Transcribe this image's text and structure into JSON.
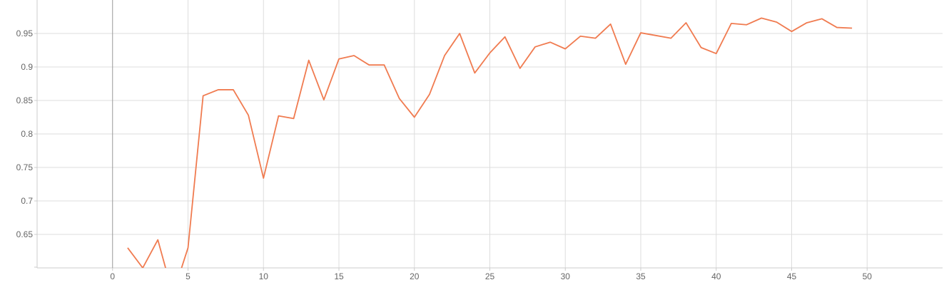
{
  "chart_data": {
    "type": "line",
    "title": "",
    "xlabel": "",
    "ylabel": "",
    "xlim": [
      -5,
      55
    ],
    "ylim": [
      0.6,
      1.0
    ],
    "x_ticks": [
      0,
      5,
      10,
      15,
      20,
      25,
      30,
      35,
      40,
      45,
      50
    ],
    "y_ticks": [
      0.65,
      0.7,
      0.75,
      0.8,
      0.85,
      0.9,
      0.95
    ],
    "x_tick_labels": [
      "0",
      "5",
      "10",
      "15",
      "20",
      "25",
      "30",
      "35",
      "40",
      "45",
      "50"
    ],
    "y_tick_labels": [
      "0.65",
      "0.7",
      "0.75",
      "0.8",
      "0.85",
      "0.9",
      "0.95"
    ],
    "grid": true,
    "legend": "none",
    "series": [
      {
        "color": "#f07b50",
        "x": [
          1,
          2,
          3,
          4,
          5,
          6,
          7,
          8,
          9,
          10,
          11,
          12,
          13,
          14,
          15,
          16,
          17,
          18,
          19,
          20,
          21,
          22,
          23,
          24,
          25,
          26,
          27,
          28,
          29,
          30,
          31,
          32,
          33,
          34,
          35,
          36,
          37,
          38,
          39,
          40,
          41,
          42,
          43,
          44,
          45,
          46,
          47,
          48,
          49
        ],
        "values": [
          0.63,
          0.6,
          0.642,
          0.56,
          0.63,
          0.857,
          0.866,
          0.866,
          0.828,
          0.734,
          0.827,
          0.823,
          0.91,
          0.851,
          0.912,
          0.917,
          0.903,
          0.903,
          0.853,
          0.825,
          0.859,
          0.917,
          0.95,
          0.891,
          0.921,
          0.945,
          0.898,
          0.93,
          0.937,
          0.927,
          0.946,
          0.943,
          0.964,
          0.904,
          0.951,
          0.947,
          0.943,
          0.966,
          0.929,
          0.92,
          0.965,
          0.963,
          0.973,
          0.967,
          0.953,
          0.966,
          0.972,
          0.959,
          0.958
        ]
      }
    ]
  }
}
